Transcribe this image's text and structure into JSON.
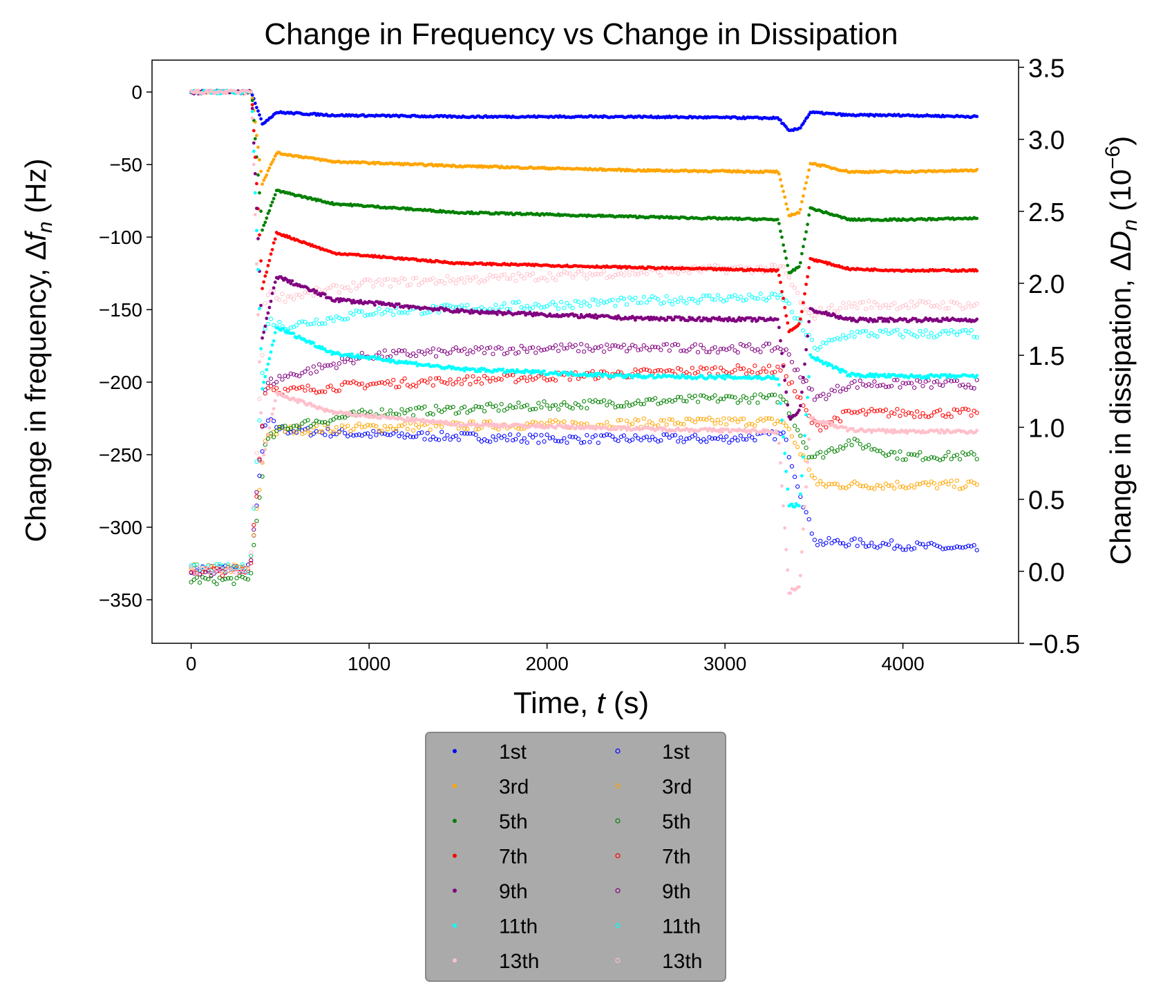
{
  "chart_data": {
    "type": "scatter",
    "title": "Change in Frequency vs Change in Dissipation",
    "xlabel": {
      "text": "Time, ",
      "var": "t",
      "unit": " (s)"
    },
    "ylabel_left": {
      "text": "Change in frequency, Δ",
      "var": "f",
      "sub": "n",
      "unit": " (Hz)"
    },
    "ylabel_right": {
      "text": "Change in dissipation, Δ",
      "var": "D",
      "sub": "n",
      "unit_pre": " (10",
      "sup": "−6",
      "unit_post": ")"
    },
    "xlim": [
      -220,
      4650
    ],
    "ylim_left": [
      -380,
      22
    ],
    "ylim_right": [
      -0.5,
      3.55
    ],
    "xticks": [
      0,
      1000,
      2000,
      3000,
      4000
    ],
    "xtick_labels": [
      "0",
      "1000",
      "2000",
      "3000",
      "4000"
    ],
    "yticks_left": [
      0,
      -50,
      -100,
      -150,
      -200,
      -250,
      -300,
      -350
    ],
    "ytick_labels_left": [
      "0",
      "−50",
      "−100",
      "−150",
      "−200",
      "−250",
      "−300",
      "−350"
    ],
    "yticks_right": [
      3.5,
      3.0,
      2.5,
      2.0,
      1.5,
      1.0,
      0.5,
      0.0,
      -0.5
    ],
    "ytick_labels_right": [
      "3.5",
      "3.0",
      "2.5",
      "2.0",
      "1.5",
      "1.0",
      "0.5",
      "0.0",
      "−0.5"
    ],
    "grid": false,
    "legend_placement": "below plot, center",
    "frequency_series": [
      {
        "name": "1st",
        "color": "#0000ff",
        "x": [
          0,
          340,
          400,
          480,
          800,
          1500,
          2500,
          3300,
          3360,
          3420,
          3480,
          3700,
          4000,
          4420
        ],
        "y": [
          0,
          0,
          -22,
          -14,
          -16,
          -17,
          -17,
          -18,
          -27,
          -25,
          -14,
          -16,
          -16,
          -17
        ]
      },
      {
        "name": "3rd",
        "color": "#ffa500",
        "x": [
          0,
          340,
          400,
          480,
          800,
          1500,
          2500,
          3300,
          3360,
          3420,
          3480,
          3700,
          4000,
          4420
        ],
        "y": [
          0,
          0,
          -63,
          -42,
          -48,
          -51,
          -54,
          -55,
          -85,
          -83,
          -49,
          -55,
          -55,
          -54
        ]
      },
      {
        "name": "5th",
        "color": "#008000",
        "x": [
          0,
          340,
          400,
          480,
          800,
          1500,
          2500,
          3300,
          3360,
          3420,
          3480,
          3700,
          4000,
          4420
        ],
        "y": [
          0,
          0,
          -95,
          -68,
          -77,
          -83,
          -86,
          -88,
          -125,
          -120,
          -80,
          -88,
          -88,
          -87
        ]
      },
      {
        "name": "7th",
        "color": "#ff0000",
        "x": [
          0,
          340,
          400,
          480,
          800,
          1500,
          2500,
          3300,
          3360,
          3420,
          3480,
          3700,
          4000,
          4420
        ],
        "y": [
          0,
          0,
          -135,
          -97,
          -111,
          -118,
          -121,
          -123,
          -165,
          -160,
          -115,
          -122,
          -123,
          -123
        ]
      },
      {
        "name": "9th",
        "color": "#800080",
        "x": [
          0,
          340,
          400,
          480,
          800,
          1500,
          2500,
          3300,
          3360,
          3420,
          3480,
          3700,
          4000,
          4420
        ],
        "y": [
          0,
          0,
          -170,
          -127,
          -143,
          -151,
          -156,
          -157,
          -225,
          -220,
          -150,
          -157,
          -157,
          -157
        ]
      },
      {
        "name": "11th",
        "color": "#00ffff",
        "x": [
          0,
          340,
          400,
          480,
          800,
          1500,
          2500,
          3300,
          3360,
          3420,
          3480,
          3700,
          4000,
          4420
        ],
        "y": [
          0,
          0,
          -205,
          -162,
          -180,
          -191,
          -196,
          -197,
          -285,
          -285,
          -182,
          -195,
          -196,
          -196
        ]
      },
      {
        "name": "13th",
        "color": "#ffc0cb",
        "x": [
          0,
          340,
          400,
          480,
          800,
          1500,
          2500,
          3300,
          3360,
          3420,
          3480,
          3700,
          4000,
          4420
        ],
        "y": [
          0,
          0,
          -255,
          -208,
          -221,
          -229,
          -232,
          -234,
          -345,
          -340,
          -225,
          -233,
          -234,
          -234
        ]
      }
    ],
    "dissipation_series": [
      {
        "name": "1st",
        "color": "#0000ff",
        "x": [
          0,
          330,
          420,
          520,
          1000,
          2000,
          3000,
          3330,
          3480,
          3520,
          3700,
          4000,
          4420
        ],
        "y": [
          0.02,
          0.02,
          1.05,
          0.98,
          0.95,
          0.92,
          0.92,
          0.95,
          0.3,
          0.2,
          0.2,
          0.18,
          0.15
        ]
      },
      {
        "name": "3rd",
        "color": "#ffa500",
        "x": [
          0,
          330,
          420,
          520,
          1000,
          2000,
          3000,
          3330,
          3480,
          3520,
          3700,
          4000,
          4420
        ],
        "y": [
          0.02,
          0.02,
          0.95,
          0.98,
          1.0,
          1.02,
          1.04,
          1.04,
          0.7,
          0.6,
          0.6,
          0.6,
          0.6
        ]
      },
      {
        "name": "5th",
        "color": "#008000",
        "x": [
          0,
          330,
          420,
          520,
          1000,
          2000,
          3000,
          3330,
          3480,
          3520,
          3700,
          4000,
          4420
        ],
        "y": [
          -0.06,
          -0.06,
          0.9,
          1.0,
          1.1,
          1.15,
          1.2,
          1.2,
          0.8,
          0.8,
          0.9,
          0.8,
          0.8
        ]
      },
      {
        "name": "7th",
        "color": "#ff0000",
        "x": [
          0,
          330,
          420,
          520,
          1000,
          2000,
          3000,
          3330,
          3480,
          3520,
          3700,
          4000,
          4420
        ],
        "y": [
          0.0,
          0.0,
          1.3,
          1.25,
          1.3,
          1.35,
          1.4,
          1.4,
          1.05,
          1.0,
          1.1,
          1.1,
          1.1
        ]
      },
      {
        "name": "9th",
        "color": "#800080",
        "x": [
          0,
          330,
          420,
          520,
          1000,
          2000,
          3000,
          3330,
          3480,
          3520,
          3700,
          4000,
          4420
        ],
        "y": [
          0.0,
          0.0,
          1.3,
          1.35,
          1.5,
          1.55,
          1.55,
          1.55,
          1.25,
          1.2,
          1.3,
          1.3,
          1.3
        ]
      },
      {
        "name": "11th",
        "color": "#00ffff",
        "x": [
          0,
          330,
          420,
          520,
          1000,
          2000,
          3000,
          3330,
          3480,
          3520,
          3700,
          4000,
          4420
        ],
        "y": [
          0.02,
          0.02,
          1.75,
          1.7,
          1.8,
          1.85,
          1.9,
          1.9,
          1.6,
          1.55,
          1.65,
          1.65,
          1.65
        ]
      },
      {
        "name": "13th",
        "color": "#ffc0cb",
        "x": [
          0,
          330,
          420,
          520,
          1000,
          2000,
          3000,
          3330,
          3480,
          3520,
          3700,
          4000,
          4420
        ],
        "y": [
          0.0,
          0.0,
          1.95,
          1.9,
          2.0,
          2.05,
          2.1,
          2.1,
          1.75,
          1.8,
          1.85,
          1.85,
          1.85
        ]
      }
    ],
    "legend": {
      "columns": 2,
      "entries_filled": [
        "1st",
        "3rd",
        "5th",
        "7th",
        "9th",
        "11th",
        "13th"
      ],
      "entries_open": [
        "1st",
        "3rd",
        "5th",
        "7th",
        "9th",
        "11th",
        "13th"
      ],
      "background": "#aaaaaa"
    }
  }
}
